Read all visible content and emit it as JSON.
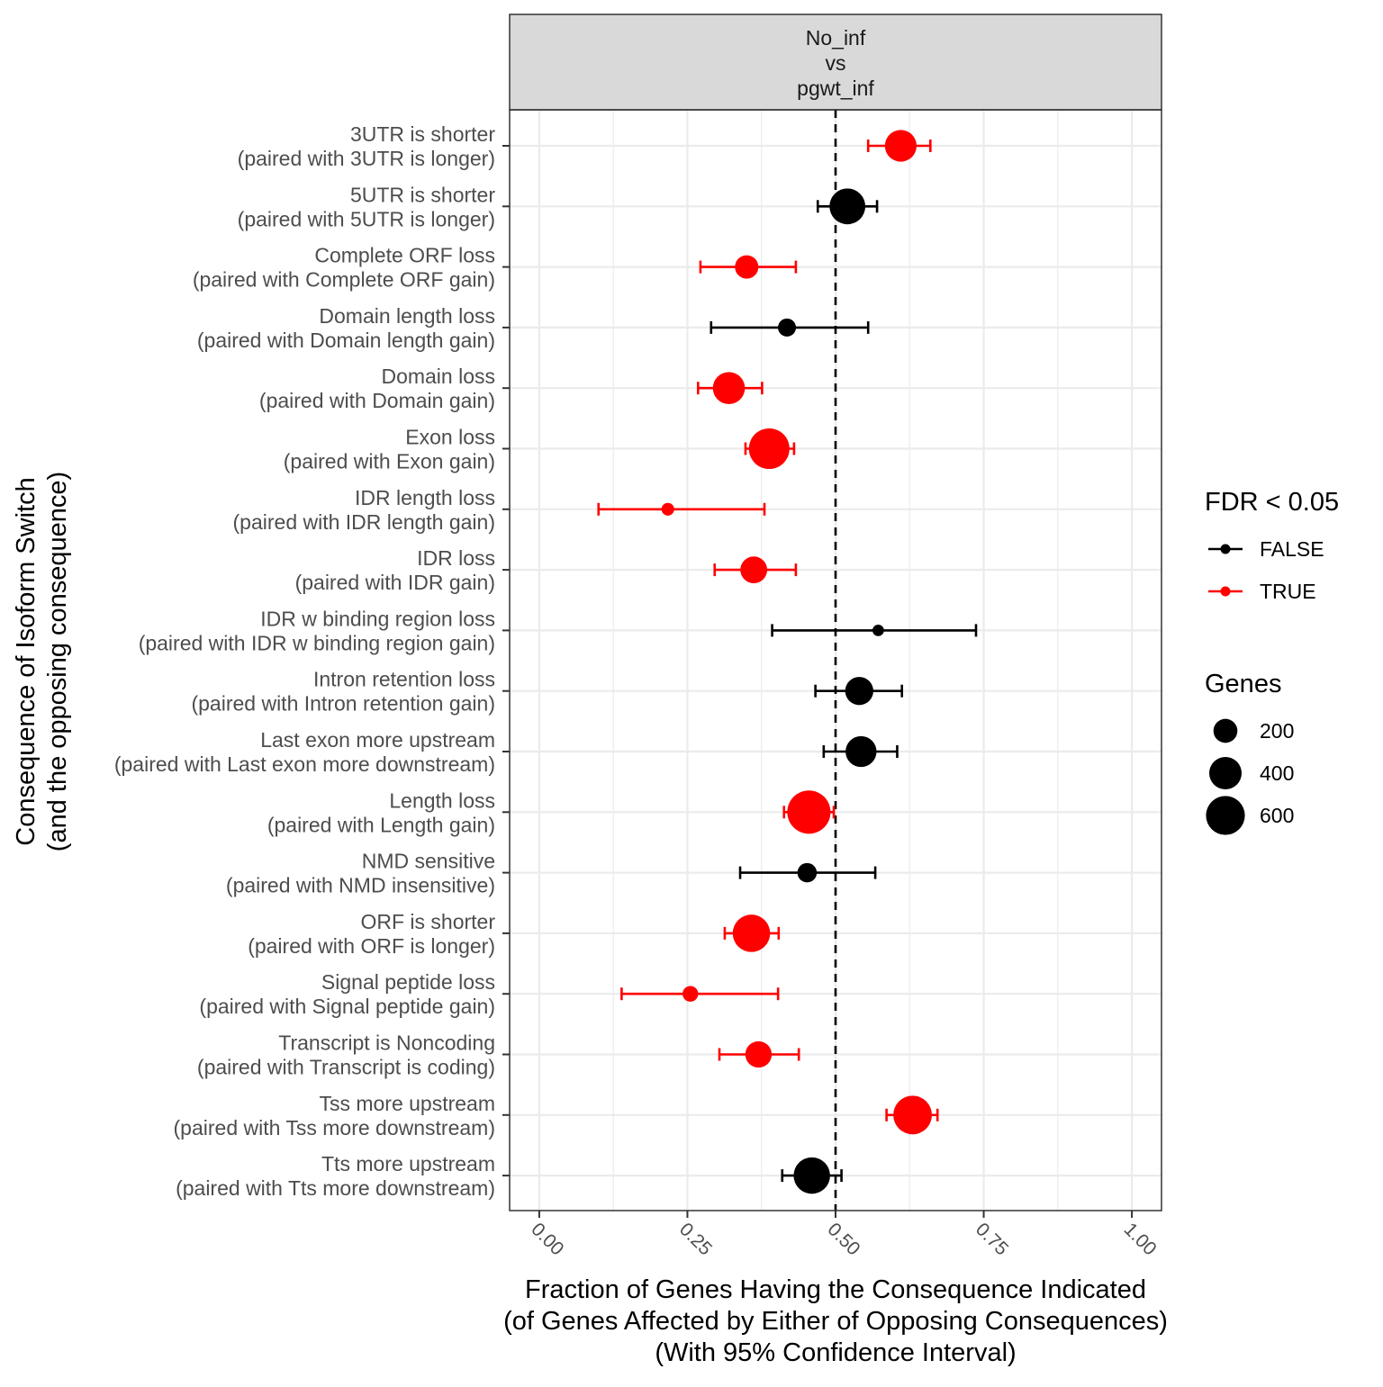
{
  "chart_data": {
    "type": "scatter",
    "panel_title": [
      "No_inf",
      "vs",
      "pgwt_inf"
    ],
    "xlabel": [
      "Fraction of Genes Having the Consequence Indicated",
      "(of Genes Affected by Either of Opposing Consequences)",
      "(With 95% Confidence Interval)"
    ],
    "ylabel": [
      "Consequence of Isoform Switch",
      "(and the opposing consequence)"
    ],
    "xlim": [
      -0.05,
      1.05
    ],
    "x_ticks": [
      0,
      0.25,
      0.5,
      0.75,
      1
    ],
    "x_tick_labels": [
      "0.00",
      "0.25",
      "0.50",
      "0.75",
      "1.00"
    ],
    "reference_line": 0.5,
    "grid": true,
    "legend_position": "right",
    "colors": {
      "FALSE": "#000000",
      "TRUE": "#ff0000",
      "strip_bg": "#d9d9d9",
      "grid": "#ebebeb"
    },
    "color_legend": {
      "title": "FDR < 0.05",
      "entries": [
        "FALSE",
        "TRUE"
      ]
    },
    "size_legend": {
      "title": "Genes",
      "values": [
        200,
        400,
        600
      ]
    },
    "points": [
      {
        "label": "3UTR is shorter",
        "paired": "(paired with 3UTR is longer)",
        "value": 0.61,
        "lower": 0.555,
        "upper": 0.66,
        "genes": 380,
        "significant": "TRUE"
      },
      {
        "label": "5UTR is shorter",
        "paired": "(paired with 5UTR is longer)",
        "value": 0.52,
        "lower": 0.47,
        "upper": 0.57,
        "genes": 500,
        "significant": "FALSE"
      },
      {
        "label": "Complete ORF loss",
        "paired": "(paired with Complete ORF gain)",
        "value": 0.35,
        "lower": 0.272,
        "upper": 0.433,
        "genes": 190,
        "significant": "TRUE"
      },
      {
        "label": "Domain length loss",
        "paired": "(paired with Domain length gain)",
        "value": 0.418,
        "lower": 0.29,
        "upper": 0.555,
        "genes": 100,
        "significant": "FALSE"
      },
      {
        "label": "Domain loss",
        "paired": "(paired with Domain gain)",
        "value": 0.32,
        "lower": 0.268,
        "upper": 0.376,
        "genes": 390,
        "significant": "TRUE"
      },
      {
        "label": "Exon loss",
        "paired": "(paired with Exon gain)",
        "value": 0.388,
        "lower": 0.348,
        "upper": 0.43,
        "genes": 660,
        "significant": "TRUE"
      },
      {
        "label": "IDR length loss",
        "paired": "(paired with IDR length gain)",
        "value": 0.217,
        "lower": 0.1,
        "upper": 0.38,
        "genes": 40,
        "significant": "TRUE"
      },
      {
        "label": "IDR loss",
        "paired": "(paired with IDR gain)",
        "value": 0.362,
        "lower": 0.296,
        "upper": 0.433,
        "genes": 260,
        "significant": "TRUE"
      },
      {
        "label": "IDR w binding region loss",
        "paired": "(paired with IDR w binding region gain)",
        "value": 0.572,
        "lower": 0.393,
        "upper": 0.737,
        "genes": 30,
        "significant": "FALSE"
      },
      {
        "label": "Intron retention loss",
        "paired": "(paired with Intron retention gain)",
        "value": 0.54,
        "lower": 0.466,
        "upper": 0.612,
        "genes": 290,
        "significant": "FALSE"
      },
      {
        "label": "Last exon more upstream",
        "paired": "(paired with Last exon more downstream)",
        "value": 0.543,
        "lower": 0.48,
        "upper": 0.604,
        "genes": 360,
        "significant": "FALSE"
      },
      {
        "label": "Length loss",
        "paired": "(paired with Length gain)",
        "value": 0.455,
        "lower": 0.413,
        "upper": 0.497,
        "genes": 760,
        "significant": "TRUE"
      },
      {
        "label": "NMD sensitive",
        "paired": "(paired with NMD insensitive)",
        "value": 0.452,
        "lower": 0.339,
        "upper": 0.567,
        "genes": 120,
        "significant": "FALSE"
      },
      {
        "label": "ORF is shorter",
        "paired": "(paired with ORF is longer)",
        "value": 0.358,
        "lower": 0.313,
        "upper": 0.404,
        "genes": 550,
        "significant": "TRUE"
      },
      {
        "label": "Signal peptide loss",
        "paired": "(paired with Signal peptide gain)",
        "value": 0.255,
        "lower": 0.139,
        "upper": 0.403,
        "genes": 70,
        "significant": "TRUE"
      },
      {
        "label": "Transcript is Noncoding",
        "paired": "(paired with Transcript is coding)",
        "value": 0.37,
        "lower": 0.304,
        "upper": 0.438,
        "genes": 250,
        "significant": "TRUE"
      },
      {
        "label": "Tss more upstream",
        "paired": "(paired with Tss more downstream)",
        "value": 0.63,
        "lower": 0.586,
        "upper": 0.672,
        "genes": 590,
        "significant": "TRUE"
      },
      {
        "label": "Tts more upstream",
        "paired": "(paired with Tts more downstream)",
        "value": 0.46,
        "lower": 0.41,
        "upper": 0.51,
        "genes": 520,
        "significant": "FALSE"
      }
    ]
  }
}
